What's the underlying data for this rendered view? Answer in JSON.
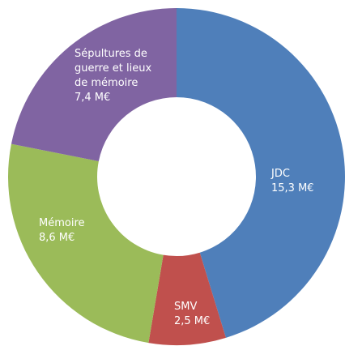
{
  "chart_data": {
    "type": "pie",
    "categories": [
      "JDC",
      "SMV",
      "Mémoire",
      "Sépultures de guerre et lieux de mémoire"
    ],
    "values": [
      15.3,
      2.5,
      8.6,
      7.4
    ],
    "value_labels": [
      "15,3 M€",
      "2,5 M€",
      "8,6 M€",
      "7,4 M€"
    ],
    "colors": [
      "#4f7fba",
      "#c0504d",
      "#9bbb59",
      "#8064a2"
    ],
    "donut": true
  }
}
